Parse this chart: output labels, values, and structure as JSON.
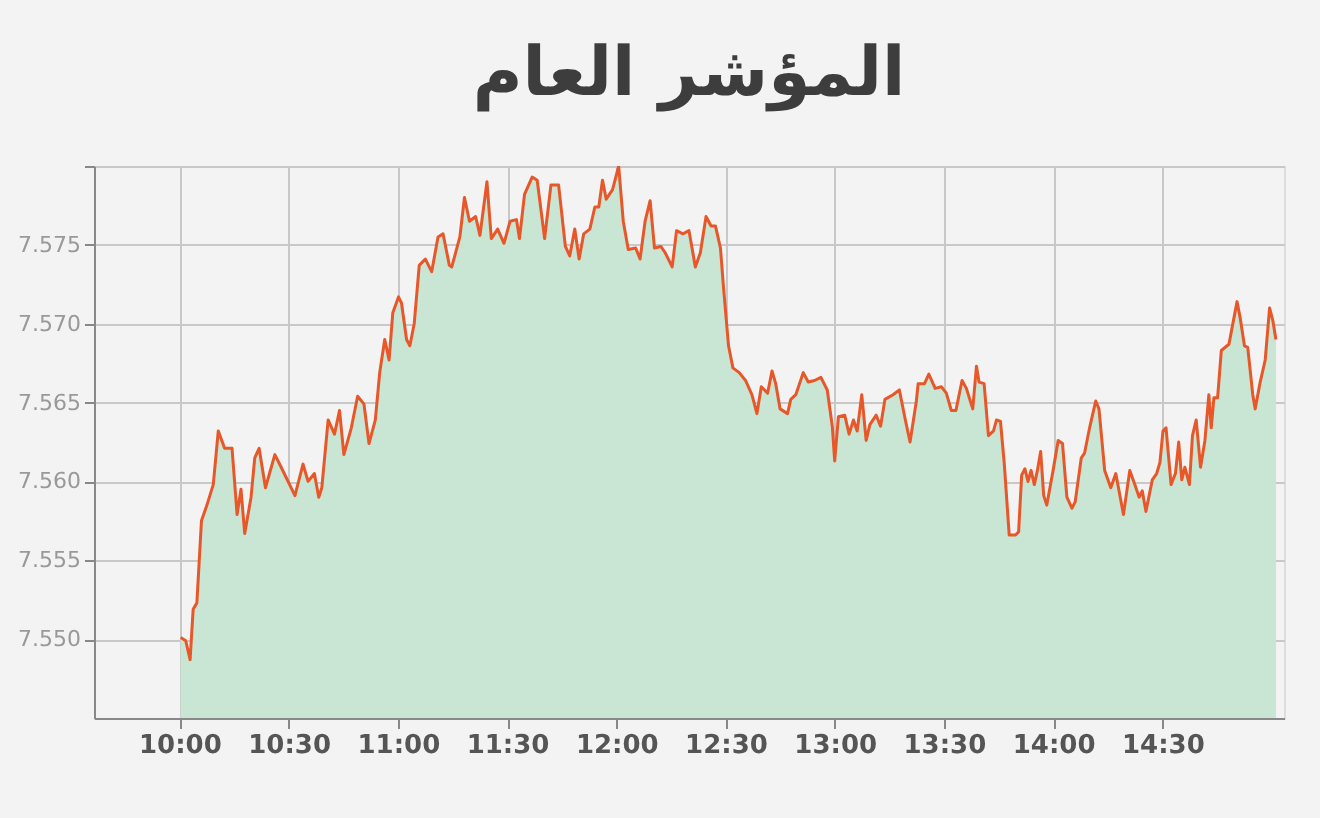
{
  "chart_data": {
    "type": "area",
    "title": "المؤشر العام",
    "xlim": [
      9.609,
      15.057
    ],
    "ylim": [
      7.545,
      7.58
    ],
    "xticks": [
      {
        "value": 10,
        "label": "10:00"
      },
      {
        "value": 10.5,
        "label": "10:30"
      },
      {
        "value": 11,
        "label": "11:00"
      },
      {
        "value": 11.5,
        "label": "11:30"
      },
      {
        "value": 12,
        "label": "12:00"
      },
      {
        "value": 12.5,
        "label": "12:30"
      },
      {
        "value": 13,
        "label": "13:00"
      },
      {
        "value": 13.5,
        "label": "13:30"
      },
      {
        "value": 14,
        "label": "14:00"
      },
      {
        "value": 14.5,
        "label": "14:30"
      }
    ],
    "yticks": [
      {
        "value": 7.55,
        "label": "7.550"
      },
      {
        "value": 7.555,
        "label": "7.555"
      },
      {
        "value": 7.56,
        "label": "7.560"
      },
      {
        "value": 7.565,
        "label": "7.565"
      },
      {
        "value": 7.57,
        "label": "7.570"
      },
      {
        "value": 7.575,
        "label": "7.575"
      },
      {
        "value": 7.58,
        "label": null
      }
    ],
    "grid": true,
    "marker": "none",
    "line_style": "solid",
    "series": [
      {
        "color": "#e8572a",
        "x": [
          10.006,
          10.029,
          10.049,
          10.063,
          10.08,
          10.101,
          10.126,
          10.155,
          10.178,
          10.207,
          10.241,
          10.264,
          10.282,
          10.299,
          10.328,
          10.345,
          10.365,
          10.394,
          10.437,
          10.466,
          10.529,
          10.566,
          10.589,
          10.618,
          10.638,
          10.652,
          10.681,
          10.71,
          10.733,
          10.753,
          10.787,
          10.816,
          10.845,
          10.868,
          10.897,
          10.917,
          10.94,
          10.96,
          10.977,
          11.003,
          11.017,
          11.04,
          11.055,
          11.075,
          11.098,
          11.126,
          11.155,
          11.184,
          11.207,
          11.236,
          11.247,
          11.284,
          11.305,
          11.328,
          11.356,
          11.376,
          11.408,
          11.428,
          11.457,
          11.486,
          11.514,
          11.543,
          11.557,
          11.58,
          11.615,
          11.638,
          11.672,
          11.701,
          11.736,
          11.767,
          11.787,
          11.81,
          11.83,
          11.851,
          11.879,
          11.902,
          11.92,
          11.937,
          11.954,
          11.983,
          12.011,
          12.032,
          12.055,
          12.089,
          12.109,
          12.132,
          12.155,
          12.175,
          12.204,
          12.224,
          12.256,
          12.276,
          12.305,
          12.333,
          12.362,
          12.385,
          12.411,
          12.434,
          12.454,
          12.477,
          12.491,
          12.514,
          12.534,
          12.563,
          12.592,
          12.621,
          12.644,
          12.664,
          12.693,
          12.713,
          12.73,
          12.75,
          12.784,
          12.799,
          12.822,
          12.856,
          12.879,
          12.908,
          12.937,
          12.966,
          12.989,
          13.0,
          13.017,
          13.046,
          13.066,
          13.086,
          13.103,
          13.124,
          13.144,
          13.161,
          13.19,
          13.21,
          13.23,
          13.267,
          13.296,
          13.325,
          13.345,
          13.374,
          13.382,
          13.411,
          13.431,
          13.46,
          13.489,
          13.511,
          13.534,
          13.555,
          13.583,
          13.603,
          13.632,
          13.649,
          13.661,
          13.684,
          13.704,
          13.727,
          13.741,
          13.759,
          13.776,
          13.799,
          13.828,
          13.842,
          13.856,
          13.871,
          13.885,
          13.899,
          13.914,
          13.928,
          13.943,
          13.957,
          13.971,
          14.0,
          14.023,
          14.043,
          14.063,
          14.086,
          14.101,
          14.129,
          14.144,
          14.167,
          14.195,
          14.21,
          14.236,
          14.264,
          14.287,
          14.322,
          14.351,
          14.374,
          14.394,
          14.408,
          14.425,
          14.454,
          14.474,
          14.489,
          14.503,
          14.517,
          14.54,
          14.56,
          14.575,
          14.589,
          14.603,
          14.624,
          14.638,
          14.655,
          14.675,
          14.695,
          14.713,
          14.724,
          14.736,
          14.753,
          14.77,
          14.805,
          14.842,
          14.856,
          14.876,
          14.891,
          14.914,
          14.925,
          14.948,
          14.971,
          14.991,
          15.006,
          15.02
        ],
        "values": [
          7.5501,
          7.5499,
          7.5487,
          7.5519,
          7.5523,
          7.5575,
          7.5585,
          7.5598,
          7.5632,
          7.5621,
          7.5621,
          7.5579,
          7.5595,
          7.5567,
          7.559,
          7.5615,
          7.5621,
          7.5596,
          7.5617,
          7.5609,
          7.5591,
          7.5611,
          7.56,
          7.5605,
          7.559,
          7.5596,
          7.5639,
          7.563,
          7.5645,
          7.5617,
          7.5634,
          7.5654,
          7.5649,
          7.5624,
          7.5639,
          7.5669,
          7.569,
          7.5677,
          7.5707,
          7.5717,
          7.5713,
          7.569,
          7.5686,
          7.57,
          7.5737,
          7.5741,
          7.5733,
          7.5755,
          7.5757,
          7.5737,
          7.5736,
          7.5755,
          7.578,
          7.5765,
          7.5768,
          7.5756,
          7.579,
          7.5754,
          7.576,
          7.5751,
          7.5765,
          7.5766,
          7.5754,
          7.5782,
          7.5793,
          7.5791,
          7.5754,
          7.5788,
          7.5788,
          7.5749,
          7.5743,
          7.576,
          7.5741,
          7.5757,
          7.576,
          7.5774,
          7.5774,
          7.5791,
          7.5779,
          7.5785,
          7.58,
          7.5765,
          7.5747,
          7.5748,
          7.5741,
          7.5765,
          7.5778,
          7.5748,
          7.5749,
          7.5745,
          7.5736,
          7.5759,
          7.5757,
          7.5759,
          7.5736,
          7.5745,
          7.5768,
          7.5762,
          7.5762,
          7.5748,
          7.5723,
          7.5686,
          7.5672,
          7.5669,
          7.5664,
          7.5655,
          7.5643,
          7.566,
          7.5656,
          7.567,
          7.5662,
          7.5646,
          7.5643,
          7.5652,
          7.5655,
          7.5669,
          7.5663,
          7.5664,
          7.5666,
          7.5658,
          7.5635,
          7.5613,
          7.5641,
          7.5642,
          7.563,
          7.5639,
          7.5632,
          7.5655,
          7.5626,
          7.5636,
          7.5642,
          7.5635,
          7.5652,
          7.5655,
          7.5658,
          7.5638,
          7.5625,
          7.5651,
          7.5662,
          7.5662,
          7.5668,
          7.5659,
          7.566,
          7.5656,
          7.5645,
          7.5645,
          7.5664,
          7.5659,
          7.5646,
          7.5673,
          7.5663,
          7.5662,
          7.5629,
          7.5632,
          7.5639,
          7.5638,
          7.5612,
          7.5566,
          7.5566,
          7.5568,
          7.5604,
          7.5608,
          7.56,
          7.5607,
          7.5598,
          7.5607,
          7.5619,
          7.5591,
          7.5585,
          7.5607,
          7.5626,
          7.5624,
          7.559,
          7.5583,
          7.5587,
          7.5615,
          7.5618,
          7.5634,
          7.5651,
          7.5646,
          7.5607,
          7.5596,
          7.5605,
          7.5579,
          7.5607,
          7.5598,
          7.559,
          7.5594,
          7.5581,
          7.5601,
          7.5605,
          7.5612,
          7.5632,
          7.5634,
          7.5598,
          7.5605,
          7.5625,
          7.5601,
          7.5609,
          7.5598,
          7.5629,
          7.5639,
          7.5609,
          7.5626,
          7.5655,
          7.5634,
          7.5653,
          7.5653,
          7.5683,
          7.5687,
          7.5714,
          7.5704,
          7.5686,
          7.5685,
          7.5655,
          7.5646,
          7.5663,
          7.5677,
          7.571,
          7.5702,
          7.569
        ]
      }
    ]
  }
}
